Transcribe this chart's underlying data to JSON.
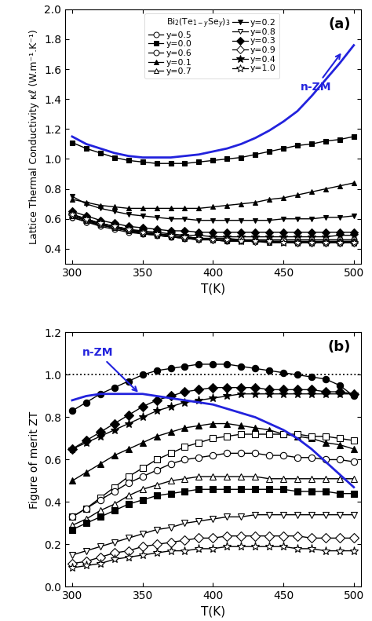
{
  "T": [
    300,
    310,
    320,
    330,
    340,
    350,
    360,
    370,
    380,
    390,
    400,
    410,
    420,
    430,
    440,
    450,
    460,
    470,
    480,
    490,
    500
  ],
  "kappa": {
    "y=0.0": [
      1.11,
      1.07,
      1.04,
      1.01,
      0.99,
      0.98,
      0.97,
      0.97,
      0.97,
      0.98,
      0.99,
      1.0,
      1.01,
      1.03,
      1.05,
      1.07,
      1.09,
      1.1,
      1.12,
      1.13,
      1.15
    ],
    "y=0.1": [
      0.73,
      0.71,
      0.69,
      0.68,
      0.67,
      0.67,
      0.67,
      0.67,
      0.67,
      0.67,
      0.68,
      0.69,
      0.7,
      0.71,
      0.73,
      0.74,
      0.76,
      0.78,
      0.8,
      0.82,
      0.84
    ],
    "y=0.2": [
      0.75,
      0.7,
      0.67,
      0.65,
      0.63,
      0.62,
      0.61,
      0.6,
      0.6,
      0.59,
      0.59,
      0.59,
      0.59,
      0.59,
      0.59,
      0.6,
      0.6,
      0.6,
      0.61,
      0.61,
      0.62
    ],
    "y=0.3": [
      0.65,
      0.62,
      0.59,
      0.57,
      0.55,
      0.54,
      0.53,
      0.52,
      0.52,
      0.51,
      0.51,
      0.51,
      0.51,
      0.51,
      0.51,
      0.51,
      0.51,
      0.51,
      0.51,
      0.51,
      0.51
    ],
    "y=0.4": [
      0.62,
      0.59,
      0.57,
      0.55,
      0.53,
      0.52,
      0.51,
      0.5,
      0.49,
      0.49,
      0.48,
      0.48,
      0.48,
      0.48,
      0.48,
      0.48,
      0.48,
      0.48,
      0.48,
      0.49,
      0.49
    ],
    "y=0.5": [
      0.61,
      0.58,
      0.56,
      0.54,
      0.52,
      0.51,
      0.5,
      0.49,
      0.48,
      0.47,
      0.47,
      0.47,
      0.46,
      0.46,
      0.46,
      0.46,
      0.46,
      0.46,
      0.46,
      0.46,
      0.46
    ],
    "y=0.6": [
      0.61,
      0.58,
      0.55,
      0.53,
      0.51,
      0.5,
      0.49,
      0.48,
      0.47,
      0.46,
      0.46,
      0.45,
      0.45,
      0.45,
      0.45,
      0.45,
      0.45,
      0.45,
      0.45,
      0.45,
      0.45
    ],
    "y=0.7": [
      0.62,
      0.59,
      0.56,
      0.54,
      0.52,
      0.5,
      0.49,
      0.48,
      0.47,
      0.46,
      0.46,
      0.45,
      0.45,
      0.45,
      0.44,
      0.44,
      0.44,
      0.44,
      0.44,
      0.44,
      0.44
    ],
    "y=0.8": [
      0.62,
      0.59,
      0.56,
      0.54,
      0.52,
      0.51,
      0.49,
      0.48,
      0.47,
      0.47,
      0.46,
      0.46,
      0.45,
      0.45,
      0.45,
      0.44,
      0.44,
      0.44,
      0.44,
      0.44,
      0.44
    ],
    "y=0.9": [
      0.63,
      0.6,
      0.57,
      0.55,
      0.53,
      0.51,
      0.5,
      0.49,
      0.48,
      0.47,
      0.46,
      0.46,
      0.46,
      0.45,
      0.45,
      0.45,
      0.44,
      0.44,
      0.44,
      0.44,
      0.44
    ],
    "y=1.0": [
      0.63,
      0.6,
      0.57,
      0.55,
      0.53,
      0.51,
      0.5,
      0.49,
      0.48,
      0.47,
      0.46,
      0.46,
      0.45,
      0.45,
      0.45,
      0.44,
      0.44,
      0.44,
      0.44,
      0.44,
      0.44
    ]
  },
  "kappa_nZM": [
    1.15,
    1.1,
    1.07,
    1.04,
    1.02,
    1.01,
    1.01,
    1.01,
    1.02,
    1.03,
    1.05,
    1.07,
    1.1,
    1.14,
    1.19,
    1.25,
    1.32,
    1.42,
    1.53,
    1.64,
    1.76
  ],
  "ZT": {
    "y=0.0_circ": [
      0.83,
      0.87,
      0.91,
      0.94,
      0.97,
      1.0,
      1.02,
      1.03,
      1.04,
      1.05,
      1.05,
      1.05,
      1.04,
      1.03,
      1.02,
      1.01,
      1.0,
      0.99,
      0.98,
      0.95,
      0.9
    ],
    "y=0.1_diam": [
      0.65,
      0.69,
      0.73,
      0.77,
      0.81,
      0.85,
      0.88,
      0.9,
      0.92,
      0.93,
      0.94,
      0.94,
      0.94,
      0.94,
      0.93,
      0.93,
      0.93,
      0.93,
      0.92,
      0.92,
      0.91
    ],
    "y=0.2_star": [
      0.65,
      0.68,
      0.71,
      0.74,
      0.77,
      0.8,
      0.83,
      0.85,
      0.87,
      0.88,
      0.89,
      0.9,
      0.91,
      0.91,
      0.91,
      0.91,
      0.91,
      0.91,
      0.91,
      0.91,
      0.91
    ],
    "y=0.3_tri": [
      0.5,
      0.54,
      0.58,
      0.62,
      0.65,
      0.68,
      0.71,
      0.73,
      0.75,
      0.76,
      0.77,
      0.77,
      0.76,
      0.75,
      0.74,
      0.72,
      0.71,
      0.7,
      0.68,
      0.67,
      0.65
    ],
    "y=0.4_sq_o": [
      0.33,
      0.37,
      0.42,
      0.47,
      0.52,
      0.56,
      0.6,
      0.63,
      0.66,
      0.68,
      0.7,
      0.71,
      0.72,
      0.72,
      0.72,
      0.72,
      0.72,
      0.71,
      0.71,
      0.7,
      0.69
    ],
    "y=0.5_circ_o": [
      0.33,
      0.37,
      0.41,
      0.45,
      0.49,
      0.52,
      0.55,
      0.58,
      0.6,
      0.61,
      0.62,
      0.63,
      0.63,
      0.63,
      0.62,
      0.62,
      0.61,
      0.61,
      0.6,
      0.6,
      0.59
    ],
    "y=0.6_tri_o": [
      0.29,
      0.32,
      0.36,
      0.39,
      0.43,
      0.46,
      0.48,
      0.5,
      0.51,
      0.52,
      0.52,
      0.52,
      0.52,
      0.52,
      0.51,
      0.51,
      0.51,
      0.51,
      0.51,
      0.51,
      0.51
    ],
    "y=0.7_sq_f": [
      0.27,
      0.3,
      0.33,
      0.36,
      0.39,
      0.41,
      0.43,
      0.44,
      0.45,
      0.46,
      0.46,
      0.46,
      0.46,
      0.46,
      0.46,
      0.46,
      0.45,
      0.45,
      0.45,
      0.44,
      0.44
    ],
    "y=0.8_inv_o": [
      0.15,
      0.17,
      0.19,
      0.21,
      0.23,
      0.25,
      0.27,
      0.28,
      0.3,
      0.31,
      0.32,
      0.33,
      0.33,
      0.34,
      0.34,
      0.34,
      0.34,
      0.34,
      0.34,
      0.34,
      0.34
    ],
    "y=0.9_diam_o": [
      0.11,
      0.12,
      0.14,
      0.16,
      0.17,
      0.19,
      0.2,
      0.21,
      0.22,
      0.23,
      0.23,
      0.24,
      0.24,
      0.24,
      0.24,
      0.24,
      0.24,
      0.23,
      0.23,
      0.23,
      0.23
    ],
    "y=1.0_star_o": [
      0.09,
      0.1,
      0.11,
      0.13,
      0.14,
      0.15,
      0.16,
      0.17,
      0.17,
      0.18,
      0.18,
      0.19,
      0.19,
      0.19,
      0.19,
      0.19,
      0.18,
      0.18,
      0.17,
      0.17,
      0.17
    ]
  },
  "ZT_nZM": [
    0.88,
    0.9,
    0.91,
    0.91,
    0.91,
    0.91,
    0.9,
    0.89,
    0.88,
    0.87,
    0.86,
    0.84,
    0.82,
    0.8,
    0.77,
    0.74,
    0.7,
    0.65,
    0.59,
    0.53,
    0.47
  ],
  "nZM_color": "#2222dd",
  "kappa_ylim": [
    0.3,
    2.0
  ],
  "ZT_ylim": [
    0.0,
    1.2
  ],
  "xlim": [
    295,
    505
  ],
  "xticks": [
    300,
    350,
    400,
    450,
    500
  ],
  "kappa_yticks": [
    0.4,
    0.6,
    0.8,
    1.0,
    1.2,
    1.4,
    1.6,
    1.8,
    2.0
  ],
  "ZT_yticks": [
    0.0,
    0.2,
    0.4,
    0.6,
    0.8,
    1.0,
    1.2
  ],
  "xlabel": "T(K)",
  "kappa_ylabel": "Lattice Thermal Conductivity κℓ (W.m⁻¹.K⁻¹)",
  "ZT_ylabel": "Figure of merit ZT",
  "label_a": "(a)",
  "label_b": "(b)"
}
